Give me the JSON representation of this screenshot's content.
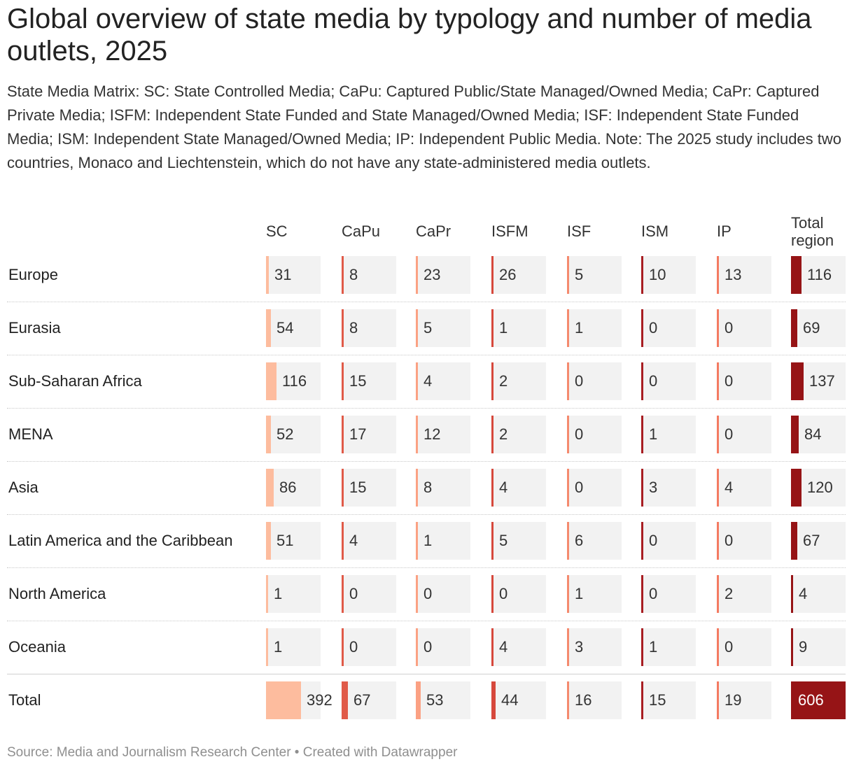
{
  "title": "Global overview of state media by typology and number of media outlets, 2025",
  "description": "State Media Matrix: SC: State Controlled Media; CaPu: Captured Public/State Managed/Owned Media; CaPr: Captured Private Media; ISFM: Independent State Funded and State Managed/Owned Media; ISF: Independent State Funded Media; ISM: Independent State Managed/Owned Media; IP: Independent Public Media. Note: The 2025 study includes two countries, Monaco and Liechtenstein, which do not have any state-administered media outlets.",
  "footer": "Source: Media and Journalism Research Center • Created with Datawrapper",
  "colors": {
    "SC": "#fdbc9e",
    "CaPu": "#e05a48",
    "CaPr": "#fba183",
    "ISFM": "#d6483c",
    "ISF": "#f58a6e",
    "ISM": "#a81e22",
    "IP": "#f47a61",
    "Total": "#961416",
    "cell_background": "#f2f2f2"
  },
  "chart_data": {
    "type": "table",
    "title": "Global overview of state media by typology and number of media outlets, 2025",
    "columns": [
      "SC",
      "CaPu",
      "CaPr",
      "ISFM",
      "ISF",
      "ISM",
      "IP",
      "Total region"
    ],
    "column_headers": [
      {
        "line1": "SC",
        "line2": ""
      },
      {
        "line1": "CaPu",
        "line2": ""
      },
      {
        "line1": "CaPr",
        "line2": ""
      },
      {
        "line1": "ISFM",
        "line2": ""
      },
      {
        "line1": "ISF",
        "line2": ""
      },
      {
        "line1": "ISM",
        "line2": ""
      },
      {
        "line1": "IP",
        "line2": ""
      },
      {
        "line1": "Total",
        "line2": "region"
      }
    ],
    "rows": [
      {
        "label": "Europe",
        "values": [
          31,
          8,
          23,
          26,
          5,
          10,
          13,
          116
        ]
      },
      {
        "label": "Eurasia",
        "values": [
          54,
          8,
          5,
          1,
          1,
          0,
          0,
          69
        ]
      },
      {
        "label": "Sub-Saharan Africa",
        "values": [
          116,
          15,
          4,
          2,
          0,
          0,
          0,
          137
        ]
      },
      {
        "label": "MENA",
        "values": [
          52,
          17,
          12,
          2,
          0,
          1,
          0,
          84
        ]
      },
      {
        "label": "Asia",
        "values": [
          86,
          15,
          8,
          4,
          0,
          3,
          4,
          120
        ]
      },
      {
        "label": "Latin America and the Caribbean",
        "values": [
          51,
          4,
          1,
          5,
          6,
          0,
          0,
          67
        ]
      },
      {
        "label": "North America",
        "values": [
          1,
          0,
          0,
          0,
          1,
          0,
          2,
          4
        ]
      },
      {
        "label": "Oceania",
        "values": [
          1,
          0,
          0,
          4,
          3,
          1,
          0,
          9
        ]
      },
      {
        "label": "Total",
        "values": [
          392,
          67,
          53,
          44,
          16,
          15,
          19,
          606
        ]
      }
    ],
    "bar_scale_max": 606
  }
}
